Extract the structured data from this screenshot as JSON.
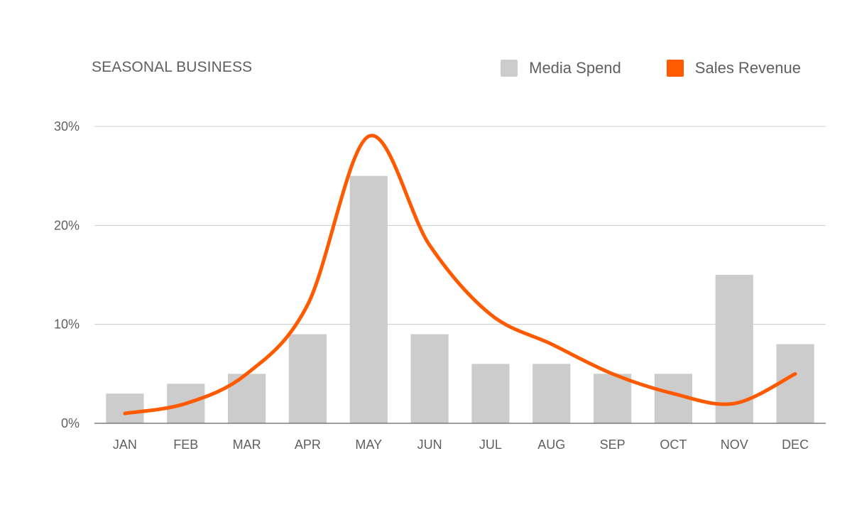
{
  "chart_data": {
    "type": "bar",
    "title": "SEASONAL BUSINESS",
    "xlabel": "",
    "ylabel": "",
    "categories": [
      "JAN",
      "FEB",
      "MAR",
      "APR",
      "MAY",
      "JUN",
      "JUL",
      "AUG",
      "SEP",
      "OCT",
      "NOV",
      "DEC"
    ],
    "ylim": [
      0,
      30
    ],
    "yticks": [
      0,
      10,
      20,
      30
    ],
    "ytick_labels": [
      "0%",
      "10%",
      "20%",
      "30%"
    ],
    "grid": true,
    "legend_position": "top-right",
    "series": [
      {
        "name": "Media Spend",
        "type": "bar",
        "color": "#cccccc",
        "values": [
          3,
          4,
          5,
          9,
          25,
          9,
          6,
          6,
          5,
          5,
          15,
          8
        ]
      },
      {
        "name": "Sales Revenue",
        "type": "line",
        "smooth": true,
        "color": "#ff5a00",
        "values": [
          1,
          2,
          5,
          12,
          29,
          18,
          11,
          8,
          5,
          3,
          2,
          5
        ]
      }
    ]
  }
}
